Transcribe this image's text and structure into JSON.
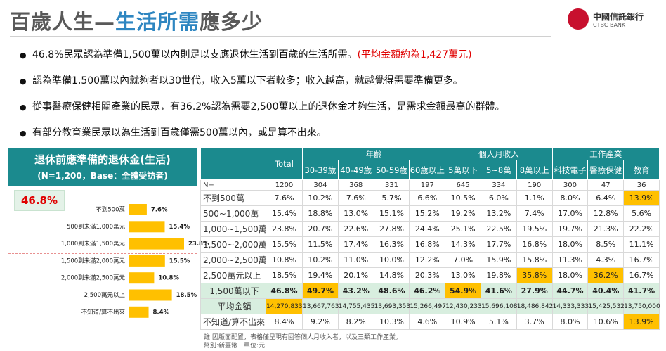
{
  "header": {
    "title": [
      "百歲人生—",
      "生活所需",
      "應多少"
    ],
    "logo": [
      "中國信託銀行",
      "CTBC BANK"
    ]
  },
  "bullets": [
    {
      "text": "46.8%民眾認為準備1,500萬以內則足以支應退休生活到百歲的生活所需。",
      "note": "(平均金額約為1,427萬元)"
    },
    {
      "text": "認為準備1,500萬以內就夠者以30世代，收入5萬以下者較多；收入越高，就越覺得需要準備更多。"
    },
    {
      "text": "從事醫療保健相關產業的民眾，有36.2%認為需要2,500萬以上的退休金才夠生活，是需求金額最高的群體。"
    },
    {
      "text": "有部分教育業民眾以為生活到百歲僅需500萬以內，或是算不出來。"
    }
  ],
  "chart_data": {
    "type": "bar",
    "orientation": "horizontal",
    "title": "退休前應準備的退休金(生活)",
    "subtitle": "(N=1,200，Base：全體受訪者)",
    "callout": "46.8%",
    "categories": [
      "不到500萬",
      "500到未滿1,000萬元",
      "1,000到未滿1,500萬元",
      "1,500到未滿2,000萬元",
      "2,000到未滿2,500萬元",
      "2,500萬元以上",
      "不知道/算不出來"
    ],
    "values": [
      7.6,
      15.4,
      23.8,
      15.5,
      10.8,
      18.5,
      8.4
    ],
    "value_labels": [
      "7.6%",
      "15.4%",
      "23.8%",
      "15.5%",
      "10.8%",
      "18.5%",
      "8.4%"
    ],
    "color": "#ffc000"
  },
  "table": {
    "total_label": "Total",
    "groups": [
      {
        "label": "年齡",
        "columns": [
          "30-39歲",
          "40-49歲",
          "50-59歲",
          "60歲以上"
        ]
      },
      {
        "label": "個人月收入",
        "columns": [
          "5萬以下",
          "5~8萬",
          "8萬以上"
        ]
      },
      {
        "label": "工作產業",
        "columns": [
          "科技電子",
          "醫療保健",
          "教育"
        ]
      }
    ],
    "n_label": "N=",
    "n": [
      1200,
      304,
      368,
      331,
      197,
      645,
      334,
      190,
      300,
      47,
      36
    ],
    "highlight_color": "#ffc000",
    "shade_color": "#d8eedf",
    "rows": [
      {
        "label": "不到500萬",
        "cells": [
          "7.6%",
          "10.2%",
          "7.6%",
          "5.7%",
          "6.6%",
          "10.5%",
          "6.0%",
          "1.1%",
          "8.0%",
          "6.4%",
          "13.9%"
        ],
        "highlight": [
          10
        ]
      },
      {
        "label": "500~1,000萬",
        "cells": [
          "15.4%",
          "18.8%",
          "13.0%",
          "15.1%",
          "15.2%",
          "19.2%",
          "13.2%",
          "7.4%",
          "17.0%",
          "12.8%",
          "5.6%"
        ],
        "highlight": []
      },
      {
        "label": "1,000~1,500萬",
        "cells": [
          "23.8%",
          "20.7%",
          "22.6%",
          "27.8%",
          "24.4%",
          "25.1%",
          "22.5%",
          "19.5%",
          "19.7%",
          "21.3%",
          "22.2%"
        ],
        "highlight": []
      },
      {
        "label": "1,500~2,000萬",
        "cells": [
          "15.5%",
          "11.5%",
          "17.4%",
          "16.3%",
          "16.8%",
          "14.3%",
          "17.7%",
          "16.8%",
          "18.0%",
          "8.5%",
          "11.1%"
        ],
        "highlight": []
      },
      {
        "label": "2,000~2,500萬",
        "cells": [
          "10.8%",
          "10.2%",
          "11.0%",
          "10.0%",
          "12.2%",
          "7.0%",
          "15.9%",
          "15.8%",
          "11.3%",
          "4.3%",
          "16.7%"
        ],
        "highlight": []
      },
      {
        "label": "2,500萬元以上",
        "cells": [
          "18.5%",
          "19.4%",
          "20.1%",
          "14.8%",
          "20.3%",
          "13.0%",
          "19.8%",
          "35.8%",
          "18.0%",
          "36.2%",
          "16.7%"
        ],
        "highlight": [
          7,
          9
        ]
      },
      {
        "label": "1,500萬以下",
        "cells": [
          "46.8%",
          "49.7%",
          "43.2%",
          "48.6%",
          "46.2%",
          "54.9%",
          "41.6%",
          "27.9%",
          "44.7%",
          "40.4%",
          "41.7%"
        ],
        "highlight": [
          1,
          5
        ],
        "shade": true,
        "bold": true
      },
      {
        "label": "平均金額",
        "cells": [
          "14,270,833",
          "13,667,763",
          "14,755,435",
          "13,693,353",
          "15,266,497",
          "12,430,233",
          "15,696,108",
          "18,486,842",
          "14,333,333",
          "15,425,532",
          "13,750,000"
        ],
        "highlight": [
          0
        ],
        "shade": true
      },
      {
        "label": "不知道/算不出來",
        "cells": [
          "8.4%",
          "9.2%",
          "8.2%",
          "10.3%",
          "4.6%",
          "10.9%",
          "5.1%",
          "3.7%",
          "8.0%",
          "10.6%",
          "13.9%"
        ],
        "highlight": [
          10
        ]
      }
    ],
    "footnotes": [
      "註:因版面配置，表格僅呈現有回答個人月收入者，以及三類工作產業。",
      "幣別:新臺幣　單位:元"
    ]
  }
}
